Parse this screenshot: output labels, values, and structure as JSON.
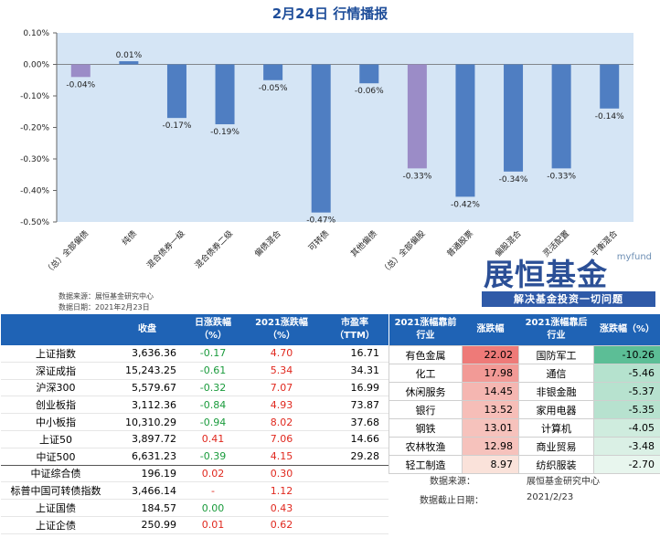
{
  "chart_title": "2月24日  行情播报",
  "chart_data": {
    "type": "bar",
    "categories": [
      "（总）全部偏债",
      "纯债",
      "混合债券一级",
      "混合债券二级",
      "偏债混合",
      "可转债",
      "其他偏债",
      "（总）全部偏股",
      "普通股票",
      "偏股混合",
      "灵活配置",
      "平衡混合"
    ],
    "values": [
      -0.04,
      0.01,
      -0.17,
      -0.19,
      -0.05,
      -0.47,
      -0.06,
      -0.33,
      -0.42,
      -0.34,
      -0.33,
      -0.14
    ],
    "value_labels": [
      "-0.04%",
      "0.01%",
      "-0.17%",
      "-0.19%",
      "-0.05%",
      "-0.47%",
      "-0.06%",
      "-0.33%",
      "-0.42%",
      "-0.34%",
      "-0.33%",
      "-0.14%"
    ],
    "ylim": [
      -0.5,
      0.1
    ],
    "yticks": [
      0.1,
      0.0,
      -0.1,
      -0.2,
      -0.3,
      -0.4,
      -0.5
    ],
    "ytick_labels": [
      "0.10%",
      "0.00%",
      "-0.10%",
      "-0.20%",
      "-0.30%",
      "-0.40%",
      "-0.50%"
    ],
    "highlight_indices": [
      0,
      7
    ],
    "bar_color": "#4f7ec2",
    "highlight_color": "#9b8cc7",
    "plot_background": "#d5e5f5"
  },
  "chart_source": {
    "line1": "数据来源：展恒基金研究中心",
    "line2": "数据日期：2021年2月23日"
  },
  "logo": {
    "small": "myfund",
    "big": "展恒基金",
    "slogan": "解决基金投资一切问题"
  },
  "market_table": {
    "headers": [
      "",
      "收盘",
      "日涨跌幅\n（%）",
      "2021涨跌幅\n（%）",
      "市盈率\n（TTM）"
    ],
    "rows": [
      {
        "name": "上证指数",
        "close": "3,636.36",
        "day": "-0.17",
        "ytd": "4.70",
        "pe": "16.71"
      },
      {
        "name": "深证成指",
        "close": "15,243.25",
        "day": "-0.61",
        "ytd": "5.34",
        "pe": "34.31"
      },
      {
        "name": "沪深300",
        "close": "5,579.67",
        "day": "-0.32",
        "ytd": "7.07",
        "pe": "16.99"
      },
      {
        "name": "创业板指",
        "close": "3,112.36",
        "day": "-0.84",
        "ytd": "4.93",
        "pe": "73.87"
      },
      {
        "name": "中小板指",
        "close": "10,310.29",
        "day": "-0.94",
        "ytd": "8.02",
        "pe": "37.68"
      },
      {
        "name": "上证50",
        "close": "3,897.72",
        "day": "0.41",
        "ytd": "7.06",
        "pe": "14.66"
      },
      {
        "name": "中证500",
        "close": "6,631.23",
        "day": "-0.39",
        "ytd": "4.15",
        "pe": "29.28"
      },
      {
        "name": "中证综合债",
        "close": "196.19",
        "day": "0.02",
        "ytd": "0.30",
        "pe": ""
      },
      {
        "name": "标普中国可转债指数",
        "close": "3,466.14",
        "day": "-",
        "ytd": "1.12",
        "pe": ""
      },
      {
        "name": "上证国债",
        "close": "184.57",
        "day": "0.00",
        "ytd": "0.43",
        "pe": ""
      },
      {
        "name": "上证企债",
        "close": "250.99",
        "day": "0.01",
        "ytd": "0.62",
        "pe": ""
      }
    ]
  },
  "industry_table": {
    "headers": [
      "2021涨幅靠前\n行业",
      "涨跌幅",
      "2021涨幅靠后\n行业",
      "涨跌幅（%）"
    ],
    "rows": [
      {
        "top": "有色金属",
        "top_chg": "22.02",
        "bottom": "国防军工",
        "bottom_chg": "-10.26"
      },
      {
        "top": "化工",
        "top_chg": "17.98",
        "bottom": "通信",
        "bottom_chg": "-5.46"
      },
      {
        "top": "休闲服务",
        "top_chg": "14.45",
        "bottom": "非银金融",
        "bottom_chg": "-5.37"
      },
      {
        "top": "银行",
        "top_chg": "13.52",
        "bottom": "家用电器",
        "bottom_chg": "-5.35"
      },
      {
        "top": "钢铁",
        "top_chg": "13.01",
        "bottom": "计算机",
        "bottom_chg": "-4.05"
      },
      {
        "top": "农林牧渔",
        "top_chg": "12.98",
        "bottom": "商业贸易",
        "bottom_chg": "-3.48"
      },
      {
        "top": "轻工制造",
        "top_chg": "8.97",
        "bottom": "纺织服装",
        "bottom_chg": "-2.70"
      }
    ],
    "notes": {
      "source_label": "数据来源：",
      "source_value": "展恒基金研究中心",
      "date_label": "数据截止日期：",
      "date_value": "2021/2/23"
    }
  }
}
